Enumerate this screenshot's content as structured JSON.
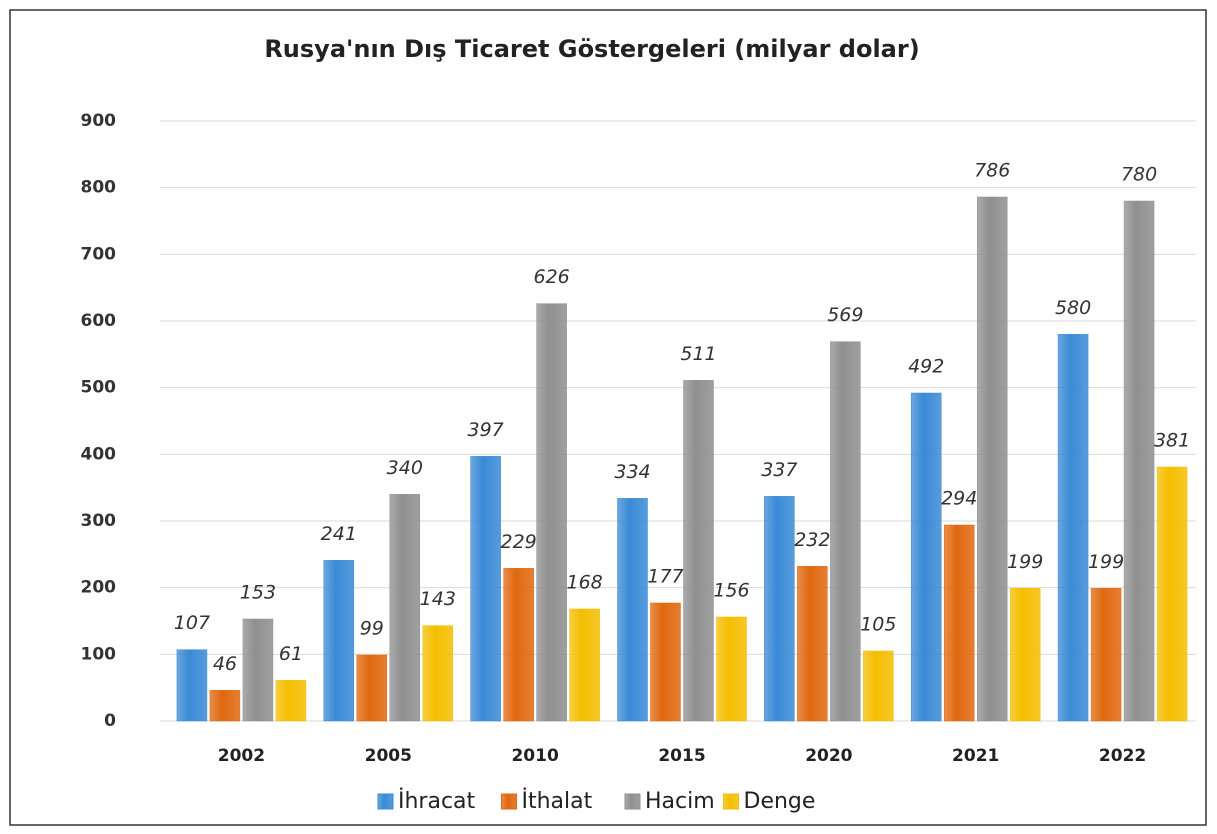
{
  "chart_data": {
    "type": "bar",
    "title": "Rusya'nın Dış Ticaret Göstergeleri  (milyar dolar)",
    "categories": [
      "2002",
      "2005",
      "2010",
      "2015",
      "2020",
      "2021",
      "2022"
    ],
    "series": [
      {
        "name": "İhracat",
        "color": "#3a8ad6",
        "values": [
          107,
          241,
          397,
          334,
          337,
          492,
          580
        ]
      },
      {
        "name": "İthalat",
        "color": "#e0680f",
        "values": [
          46,
          99,
          229,
          177,
          232,
          294,
          199
        ]
      },
      {
        "name": "Hacim",
        "color": "#8f8f8f",
        "values": [
          153,
          340,
          626,
          511,
          569,
          786,
          780
        ]
      },
      {
        "name": "Denge",
        "color": "#f5be00",
        "values": [
          61,
          143,
          168,
          156,
          105,
          199,
          381
        ]
      }
    ],
    "ylim": [
      0,
      900
    ],
    "yticks": [
      0,
      100,
      200,
      300,
      400,
      500,
      600,
      700,
      800,
      900
    ],
    "grid": true,
    "legend": "bottom"
  }
}
